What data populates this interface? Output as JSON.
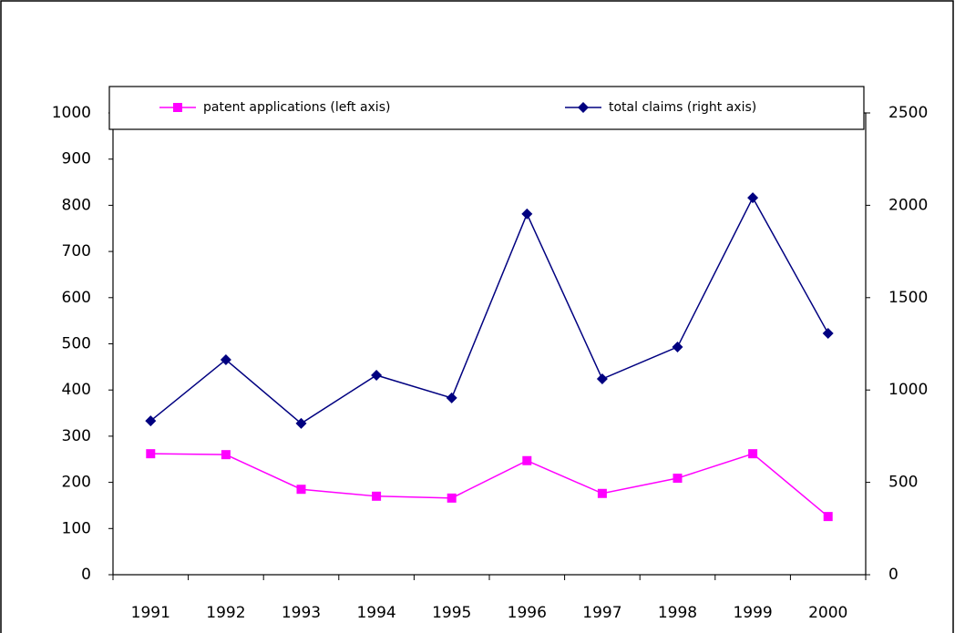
{
  "chart_data": {
    "type": "line",
    "categories": [
      "1991",
      "1992",
      "1993",
      "1994",
      "1995",
      "1996",
      "1997",
      "1998",
      "1999",
      "2000"
    ],
    "series": [
      {
        "name": "patent applications (left axis)",
        "color": "#ff00ff",
        "marker": "square",
        "axis": "y",
        "values": [
          262,
          260,
          185,
          170,
          166,
          247,
          176,
          209,
          262,
          126
        ]
      },
      {
        "name": "total claims (right axis)",
        "color": "#000080",
        "marker": "diamond",
        "axis": "y2",
        "values": [
          833,
          1164,
          819,
          1080,
          957,
          1953,
          1060,
          1233,
          2041,
          1307
        ]
      }
    ],
    "ylim": [
      0,
      1000
    ],
    "yticks": [
      0,
      100,
      200,
      300,
      400,
      500,
      600,
      700,
      800,
      900,
      1000
    ],
    "y2lim": [
      0,
      2500
    ],
    "y2ticks": [
      0,
      500,
      1000,
      1500,
      2000,
      2500
    ],
    "grid": false,
    "legend": "top"
  }
}
